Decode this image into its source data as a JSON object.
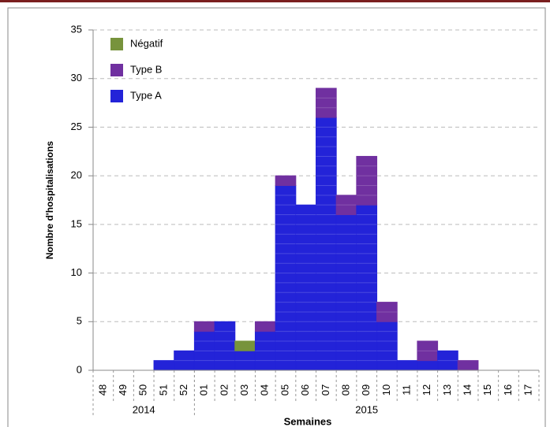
{
  "chart_data": {
    "type": "stacked-bar",
    "y_label": "Nombre d'hospitalisations",
    "x_label": "Semaines",
    "categories": [
      "48",
      "49",
      "50",
      "51",
      "52",
      "01",
      "02",
      "03",
      "04",
      "05",
      "06",
      "07",
      "08",
      "09",
      "10",
      "11",
      "12",
      "13",
      "14",
      "15",
      "16",
      "17"
    ],
    "category_groups": [
      {
        "label": "2014",
        "first": "48",
        "last": "52"
      },
      {
        "label": "2015",
        "first": "01",
        "last": "17"
      }
    ],
    "series": [
      {
        "name": "Type A",
        "color": "#2323d8",
        "values": [
          0,
          0,
          0,
          1,
          2,
          4,
          5,
          2,
          4,
          19,
          17,
          26,
          16,
          17,
          5,
          1,
          1,
          2,
          0,
          0,
          0,
          0
        ]
      },
      {
        "name": "Type B",
        "color": "#7030a0",
        "values": [
          0,
          0,
          0,
          0,
          0,
          1,
          0,
          0,
          1,
          1,
          0,
          3,
          2,
          5,
          2,
          0,
          2,
          0,
          1,
          0,
          0,
          0
        ]
      },
      {
        "name": "Négatif",
        "color": "#77933c",
        "values": [
          0,
          0,
          0,
          0,
          0,
          0,
          0,
          1,
          0,
          0,
          0,
          0,
          0,
          0,
          0,
          0,
          0,
          0,
          0,
          0,
          0,
          0
        ]
      }
    ],
    "legend_order": [
      "Négatif",
      "Type B",
      "Type A"
    ],
    "ylim": [
      0,
      35
    ],
    "yticks": [
      0,
      5,
      10,
      15,
      20,
      25,
      30,
      35
    ],
    "grid": true
  }
}
